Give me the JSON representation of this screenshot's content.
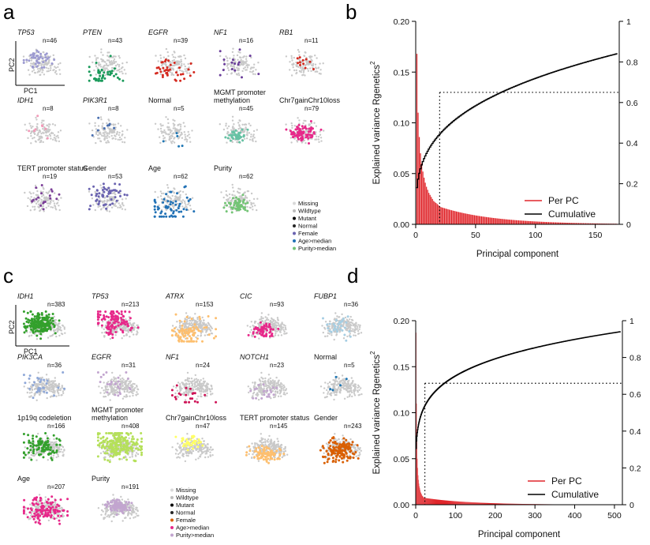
{
  "figure": {
    "panels": {
      "a": "a",
      "b": "b",
      "c": "c",
      "d": "d"
    },
    "pc1": "PC1",
    "pc2": "PC2"
  },
  "panel_a": {
    "tiles": [
      {
        "label": "TP53",
        "italic": true,
        "count": "n=46",
        "color": "#9c9ad0",
        "nclr": 46
      },
      {
        "label": "PTEN",
        "italic": true,
        "count": "n=43",
        "color": "#1a9a5a",
        "nclr": 43
      },
      {
        "label": "EGFR",
        "italic": true,
        "count": "n=39",
        "color": "#d42a20",
        "nclr": 39
      },
      {
        "label": "NF1",
        "italic": true,
        "count": "n=16",
        "color": "#6a3d9a",
        "nclr": 16
      },
      {
        "label": "RB1",
        "italic": true,
        "count": "n=11",
        "color": "#d42a20",
        "nclr": 11
      },
      {
        "label": "IDH1",
        "italic": true,
        "count": "n=8",
        "color": "#f29ab8",
        "nclr": 8
      },
      {
        "label": "PIK3R1",
        "italic": true,
        "count": "n=8",
        "color": "#4a6fb0",
        "nclr": 8
      },
      {
        "label": "Normal",
        "italic": false,
        "count": "n=5",
        "color": "#1f77b4",
        "nclr": 5
      },
      {
        "label": "MGMT promoter\nmethylation",
        "italic": false,
        "count": "n=45",
        "color": "#66c2a4",
        "nclr": 45
      },
      {
        "label": "Chr7gainChr10loss",
        "italic": false,
        "count": "n=79",
        "color": "#e7298a",
        "nclr": 79
      },
      {
        "label": "TERT promoter status",
        "italic": false,
        "count": "n=19",
        "color": "#7b3f98",
        "nclr": 19
      },
      {
        "label": "Gender",
        "italic": false,
        "count": "n=53",
        "color": "#6a63b0",
        "nclr": 53
      },
      {
        "label": "Age",
        "italic": false,
        "count": "n=62",
        "color": "#2171b5",
        "nclr": 62
      },
      {
        "label": "Purity",
        "italic": false,
        "count": "n=62",
        "color": "#74c476",
        "nclr": 62
      }
    ],
    "legend": [
      {
        "label": "Missing",
        "color": "#d9d9d9"
      },
      {
        "label": "Wildtype",
        "color": "#bdbdbd"
      },
      {
        "label": "Mutant",
        "color": "#000000"
      },
      {
        "label": "Normal",
        "color": "#252525"
      },
      {
        "label": "Female",
        "color": "#6a63b0"
      },
      {
        "label": "Age>median",
        "color": "#2171b5"
      },
      {
        "label": "Purity>median",
        "color": "#74c476"
      }
    ]
  },
  "panel_c": {
    "tiles": [
      {
        "label": "IDH1",
        "italic": true,
        "count": "n=383",
        "color": "#33a02c",
        "nclr": 200
      },
      {
        "label": "TP53",
        "italic": true,
        "count": "n=213",
        "color": "#e7298a",
        "nclr": 120
      },
      {
        "label": "ATRX",
        "italic": true,
        "count": "n=153",
        "color": "#fdbf6f",
        "nclr": 90
      },
      {
        "label": "CIC",
        "italic": true,
        "count": "n=93",
        "color": "#e7298a",
        "nclr": 60
      },
      {
        "label": "FUBP1",
        "italic": true,
        "count": "n=36",
        "color": "#a6cee3",
        "nclr": 30
      },
      {
        "label": "PIK3CA",
        "italic": true,
        "count": "n=36",
        "color": "#8fa8d8",
        "nclr": 30
      },
      {
        "label": "EGFR",
        "italic": true,
        "count": "n=31",
        "color": "#c2a5cf",
        "nclr": 26
      },
      {
        "label": "NF1",
        "italic": true,
        "count": "n=24",
        "color": "#ce1256",
        "nclr": 22
      },
      {
        "label": "NOTCH1",
        "italic": true,
        "count": "n=23",
        "color": "#c2a5cf",
        "nclr": 21
      },
      {
        "label": "Normal",
        "italic": false,
        "count": "n=5",
        "color": "#1f77b4",
        "nclr": 5
      },
      {
        "label": "1p19q codeletion",
        "italic": false,
        "count": "n=166",
        "color": "#33a02c",
        "nclr": 100
      },
      {
        "label": "MGMT promoter\nmethylation",
        "italic": false,
        "count": "n=408",
        "color": "#b5e05a",
        "nclr": 230
      },
      {
        "label": "Chr7gainChr10loss",
        "italic": false,
        "count": "n=47",
        "color": "#ffff66",
        "nclr": 40
      },
      {
        "label": "TERT promoter status",
        "italic": false,
        "count": "n=145",
        "color": "#fdbf6f",
        "nclr": 90
      },
      {
        "label": "Gender",
        "italic": false,
        "count": "n=243",
        "color": "#d95f02",
        "nclr": 140
      },
      {
        "label": "Age",
        "italic": false,
        "count": "n=207",
        "color": "#e7298a",
        "nclr": 120
      },
      {
        "label": "Purity",
        "italic": false,
        "count": "n=191",
        "color": "#c2a5cf",
        "nclr": 110
      }
    ],
    "legend": [
      {
        "label": "Missing",
        "color": "#d9d9d9"
      },
      {
        "label": "Wildtype",
        "color": "#bdbdbd"
      },
      {
        "label": "Mutant",
        "color": "#000000"
      },
      {
        "label": "Normal",
        "color": "#252525"
      },
      {
        "label": "Female",
        "color": "#d95f02"
      },
      {
        "label": "Age>median",
        "color": "#e7298a"
      },
      {
        "label": "Purity>median",
        "color": "#c2a5cf"
      }
    ]
  },
  "chart_data": [
    {
      "id": "b",
      "type": "bar",
      "xlabel": "Principal component",
      "ylabel": "Explained variance  Rgenetics",
      "ylabel_sup": "2",
      "xlim": [
        0,
        170
      ],
      "ylim": [
        0,
        0.2
      ],
      "y2lim": [
        0,
        1
      ],
      "xticks": [
        0,
        50,
        100,
        150
      ],
      "xtick_labels": [
        "0",
        "50",
        "100",
        "150"
      ],
      "yticks": [
        0,
        0.05,
        0.1,
        0.15,
        0.2
      ],
      "ytick_labels": [
        "0.00",
        "0.05",
        "0.10",
        "0.15",
        "0.20"
      ],
      "y2ticks": [
        0,
        0.2,
        0.4,
        0.6,
        0.8,
        1
      ],
      "y2tick_labels": [
        "0",
        "0.2",
        "0.4",
        "0.6",
        "0.8",
        "1"
      ],
      "n_components": 168,
      "per_pc_first": [
        0.168,
        0.11,
        0.086,
        0.07,
        0.06,
        0.052,
        0.046,
        0.041,
        0.037,
        0.034,
        0.031,
        0.029,
        0.027,
        0.025,
        0.023,
        0.022,
        0.021,
        0.02,
        0.019,
        0.018
      ],
      "per_pc_tail_start": 0.017,
      "per_pc_tail_end": 0.0006,
      "cumulative_end": 0.84,
      "cumulative_shape": 0.3,
      "threshold_y2": 0.65,
      "threshold_x": 20,
      "series": [
        {
          "name": "Per PC",
          "color": "#e0262b"
        },
        {
          "name": "Cumulative",
          "color": "#000000"
        }
      ]
    },
    {
      "id": "d",
      "type": "bar",
      "xlabel": "Principal component",
      "ylabel": "Explained variance Rgenetics",
      "ylabel_sup": "2",
      "xlim": [
        0,
        520
      ],
      "ylim": [
        0,
        0.2
      ],
      "y2lim": [
        0,
        1
      ],
      "xticks": [
        0,
        100,
        200,
        300,
        400,
        500
      ],
      "xtick_labels": [
        "0",
        "100",
        "200",
        "300",
        "400",
        "500"
      ],
      "yticks": [
        0,
        0.05,
        0.1,
        0.15,
        0.2
      ],
      "ytick_labels": [
        "0.00",
        "0.05",
        "0.10",
        "0.15",
        "0.20"
      ],
      "y2ticks": [
        0,
        0.2,
        0.4,
        0.6,
        0.8,
        1
      ],
      "y2tick_labels": [
        "0",
        "0.2",
        "0.4",
        "0.6",
        "0.8",
        "1"
      ],
      "n_components": 515,
      "per_pc_first": [
        0.187,
        0.11,
        0.07,
        0.05,
        0.04,
        0.032,
        0.027,
        0.023,
        0.02,
        0.018,
        0.016,
        0.014,
        0.013,
        0.012,
        0.011,
        0.01,
        0.0095,
        0.009,
        0.0085,
        0.008
      ],
      "per_pc_tail_start": 0.0075,
      "per_pc_tail_end": 0.0001,
      "cumulative_end": 0.94,
      "cumulative_shape": 0.18,
      "threshold_y2": 0.66,
      "threshold_x": 23,
      "series": [
        {
          "name": "Per PC",
          "color": "#e0262b"
        },
        {
          "name": "Cumulative",
          "color": "#000000"
        }
      ]
    }
  ]
}
